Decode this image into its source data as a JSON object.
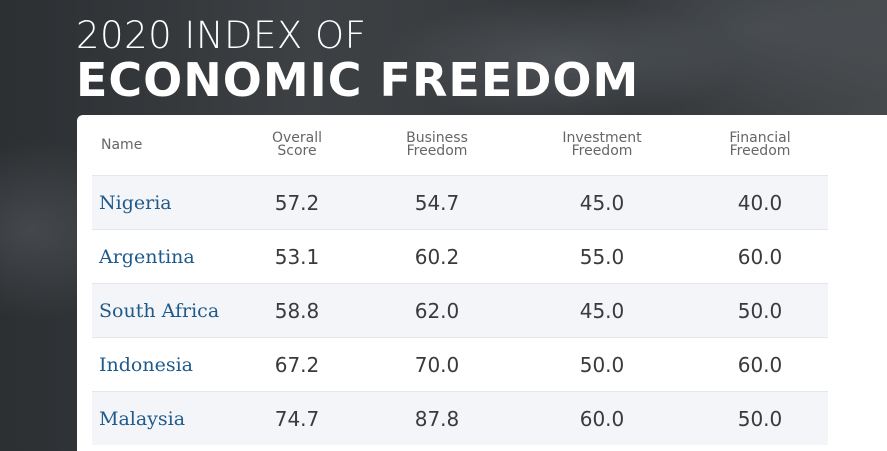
{
  "header": {
    "title_line1": "2020 INDEX OF",
    "title_line2": "ECONOMIC FREEDOM"
  },
  "table": {
    "columns": [
      "Name",
      "Overall Score",
      "Business Freedom",
      "Investment Freedom",
      "Financial Freedom"
    ],
    "rows": [
      [
        "Nigeria",
        "57.2",
        "54.7",
        "45.0",
        "40.0"
      ],
      [
        "Argentina",
        "53.1",
        "60.2",
        "55.0",
        "60.0"
      ],
      [
        "South Africa",
        "58.8",
        "62.0",
        "45.0",
        "50.0"
      ],
      [
        "Indonesia",
        "67.2",
        "70.0",
        "50.0",
        "60.0"
      ],
      [
        "Malaysia",
        "74.7",
        "87.8",
        "60.0",
        "50.0"
      ]
    ]
  }
}
